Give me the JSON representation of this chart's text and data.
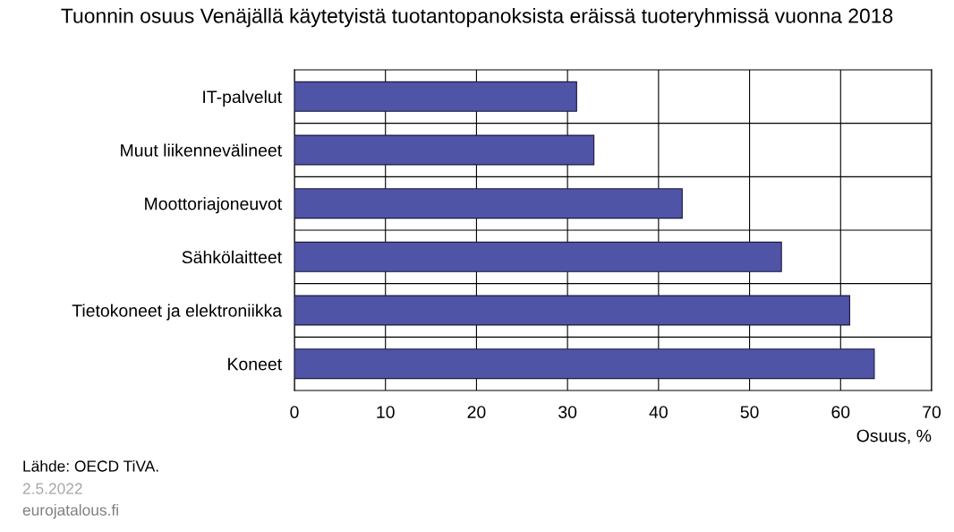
{
  "chart_data": {
    "type": "bar",
    "orientation": "horizontal",
    "title": "Tuonnin osuus Venäjällä käytetyistä tuotantopanoksista eräissä tuoteryhmissä vuonna 2018",
    "categories": [
      "IT-palvelut",
      "Muut liikennevälineet",
      "Moottoriajoneuvot",
      "Sähkölaitteet",
      "Tietokoneet ja elektroniikka",
      "Koneet"
    ],
    "values": [
      31.0,
      32.9,
      42.6,
      53.5,
      61.0,
      63.7
    ],
    "color": "#4f54a6",
    "xlabel": "Osuus, %",
    "xlim": [
      0,
      70
    ],
    "xticks": [
      0,
      10,
      20,
      30,
      40,
      50,
      60,
      70
    ],
    "grid": true,
    "legend": false,
    "annotations": [
      "Lähde: OECD TiVA.",
      "2.5.2022",
      "eurojatalous.fi"
    ]
  }
}
